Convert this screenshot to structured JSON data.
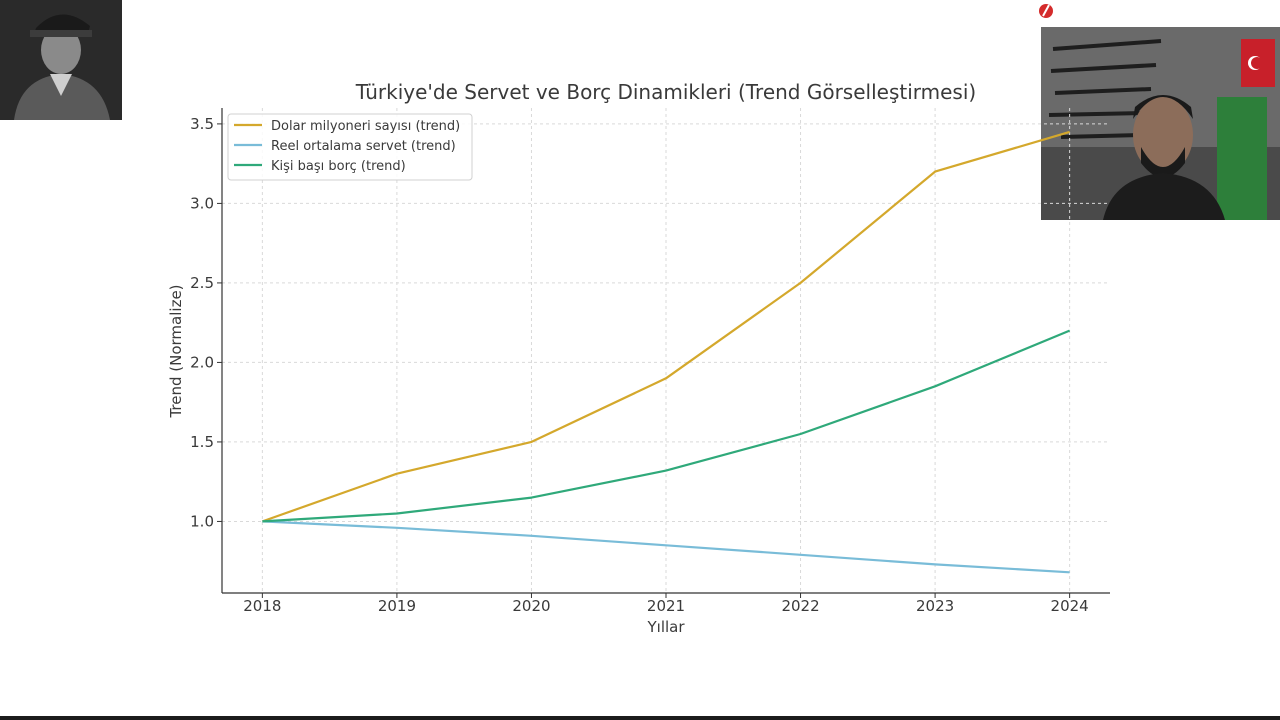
{
  "chart_data": {
    "type": "line",
    "title": "Türkiye'de Servet ve Borç Dinamikleri (Trend Görselleştirmesi)",
    "xlabel": "Yıllar",
    "ylabel": "Trend (Normalize)",
    "x": [
      2018,
      2019,
      2020,
      2021,
      2022,
      2023,
      2024
    ],
    "x_tick_labels": [
      "2018",
      "2019",
      "2020",
      "2021",
      "2022",
      "2023",
      "2024"
    ],
    "y_ticks": [
      1.0,
      1.5,
      2.0,
      2.5,
      3.0,
      3.5
    ],
    "y_tick_labels": [
      "1.0",
      "1.5",
      "2.0",
      "2.5",
      "3.0",
      "3.5"
    ],
    "xlim": [
      2017.7,
      2024.3
    ],
    "ylim": [
      0.55,
      3.6
    ],
    "grid": true,
    "legend_position": "top-left",
    "series": [
      {
        "name": "Dolar milyoneri sayısı (trend)",
        "color": "#d4a82c",
        "values": [
          1.0,
          1.3,
          1.5,
          1.9,
          2.5,
          3.2,
          3.45
        ]
      },
      {
        "name": "Reel ortalama servet (trend)",
        "color": "#79bcd8",
        "values": [
          1.0,
          0.96,
          0.91,
          0.85,
          0.79,
          0.73,
          0.68
        ]
      },
      {
        "name": "Kişi başı borç (trend)",
        "color": "#2fa97a",
        "values": [
          1.0,
          1.05,
          1.15,
          1.32,
          1.55,
          1.85,
          2.2
        ]
      }
    ]
  },
  "overlays": {
    "portrait_icon": "portrait-photo",
    "webcam_icon": "webcam-feed",
    "logo_icon": "red-circle-logo"
  }
}
